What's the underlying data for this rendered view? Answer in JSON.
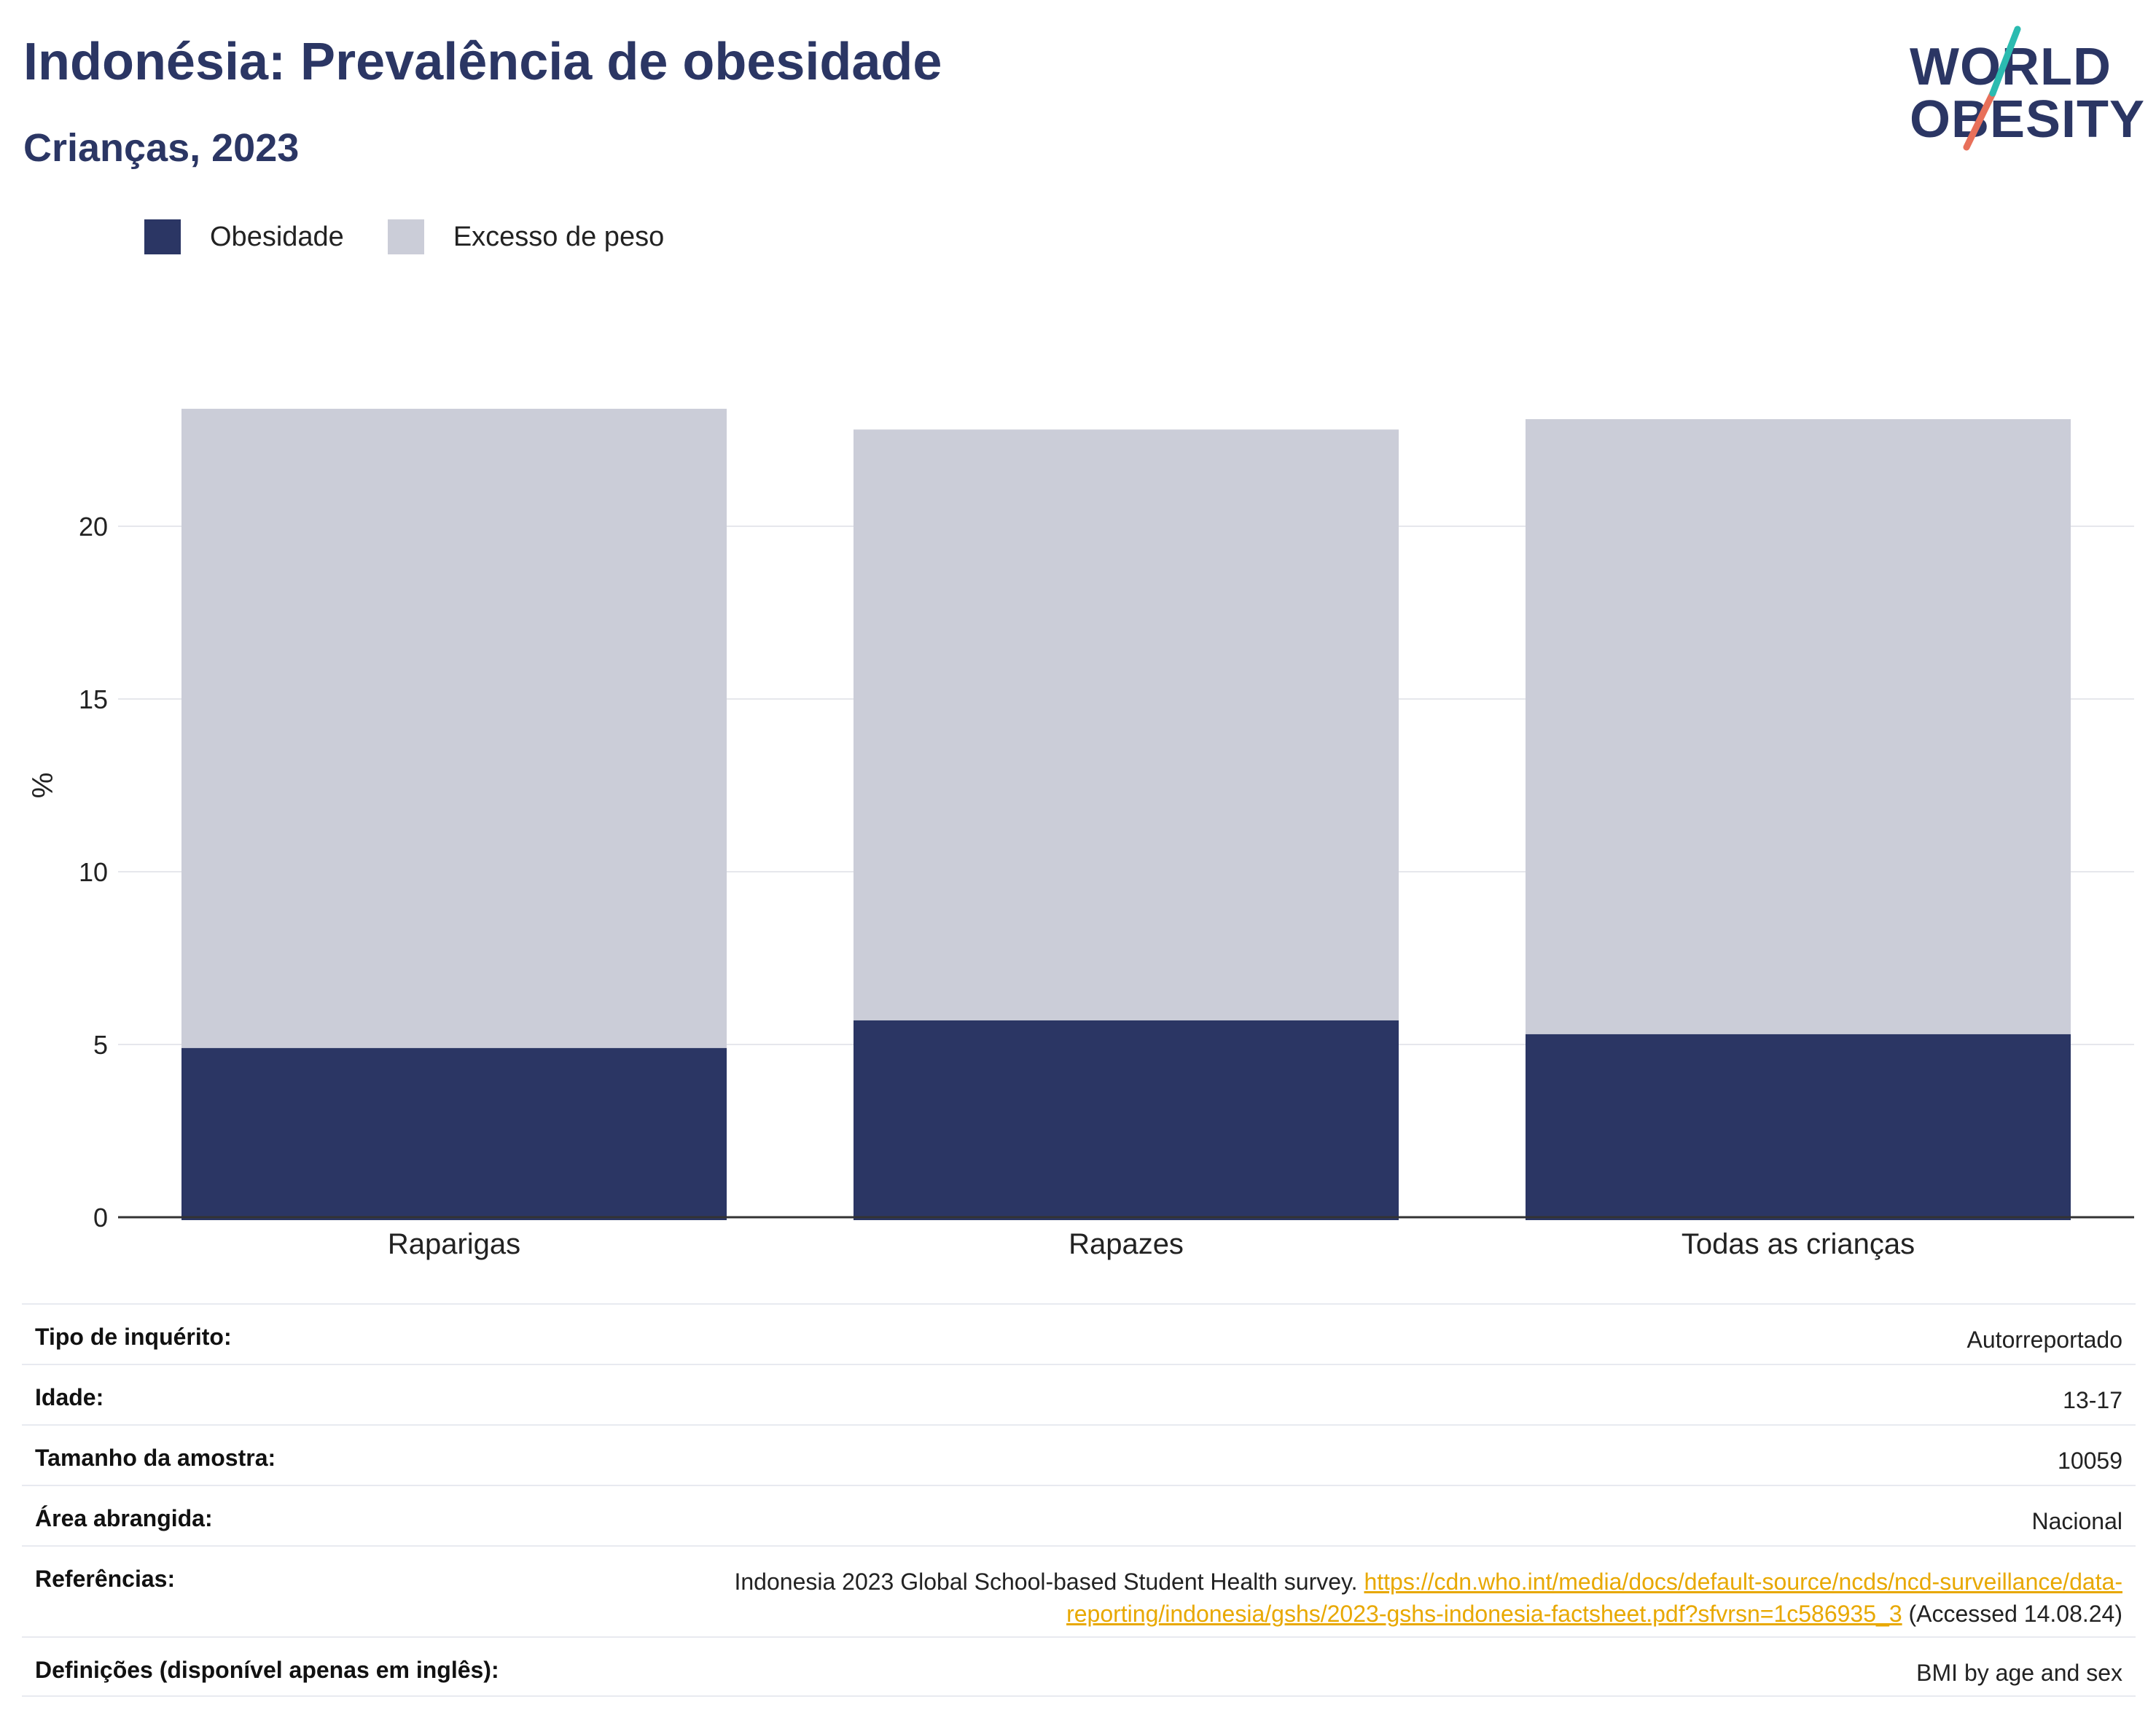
{
  "header": {
    "title": "Indonésia: Prevalência de obesidade",
    "subtitle": "Crianças, 2023"
  },
  "logo": {
    "line1": "WORLD",
    "line2": "OBESITY",
    "accent_colors": [
      "#2bbbb0",
      "#e8705a"
    ]
  },
  "colors": {
    "obesity": "#2b3664",
    "overweight": "#cbcdd8",
    "title": "#2b3664",
    "link": "#e8a800"
  },
  "chart_data": {
    "type": "bar",
    "stacked": true,
    "categories": [
      "Raparigas",
      "Rapazes",
      "Todas as crianças"
    ],
    "series": [
      {
        "name": "Obesidade",
        "values": [
          4.9,
          5.7,
          5.3
        ],
        "color": "#2b3664"
      },
      {
        "name": "Excesso de peso",
        "values": [
          18.5,
          17.1,
          17.8
        ],
        "color": "#cbcdd8"
      }
    ],
    "ylabel": "%",
    "xlabel": "",
    "ylim": [
      0,
      25
    ],
    "yticks": [
      0,
      5,
      10,
      15,
      20
    ],
    "grid": true,
    "legend_position": "top-left"
  },
  "meta": [
    {
      "label": "Tipo de inquérito:",
      "value": "Autorreportado"
    },
    {
      "label": "Idade:",
      "value": "13-17"
    },
    {
      "label": "Tamanho da amostra:",
      "value": "10059"
    },
    {
      "label": "Área abrangida:",
      "value": "Nacional"
    }
  ],
  "references": {
    "label": "Referências:",
    "text": "Indonesia 2023 Global School-based Student Health survey.",
    "link": "https://cdn.who.int/media/docs/default-source/ncds/ncd-surveillance/data-reporting/indonesia/gshs/2023-gshs-indonesia-factsheet.pdf?sfvrsn=1c586935_3",
    "accessed": "(Accessed 14.08.24)"
  },
  "definitions": {
    "label": "Definições (disponível apenas em inglês):",
    "value": "BMI by age and sex"
  }
}
